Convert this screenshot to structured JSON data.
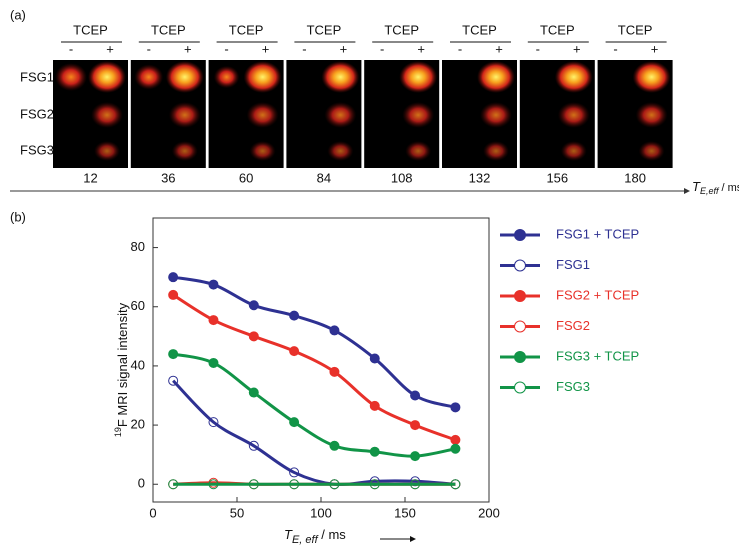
{
  "panel_labels": [
    "(a)",
    "(b)"
  ],
  "panel_a": {
    "column_header": "TCEP",
    "column_signs": [
      "-",
      "+"
    ],
    "rows": [
      "FSG1",
      "FSG2",
      "FSG3"
    ],
    "times": [
      "12",
      "36",
      "60",
      "84",
      "108",
      "132",
      "156",
      "180"
    ],
    "axis_label": {
      "symbol": "T",
      "subscript": "E,eff",
      "unit": " / ms"
    }
  },
  "chart_data": {
    "type": "line",
    "y_label": {
      "superscript": "19",
      "text": "F MRI signal intensity"
    },
    "x_label": {
      "symbol": "T",
      "subscript": "E, eff",
      "unit": " / ms"
    },
    "x": [
      12,
      36,
      60,
      84,
      108,
      132,
      156,
      180
    ],
    "xlim": [
      0,
      200
    ],
    "xticks": [
      0,
      50,
      100,
      150,
      200
    ],
    "ylim": [
      -6,
      90
    ],
    "yticks": [
      0,
      20,
      40,
      60,
      80
    ],
    "legend": "outside-right",
    "series": [
      {
        "name": "FSG1 + TCEP",
        "color": "#2e3192",
        "filled_markers": true,
        "values": [
          70,
          67.5,
          60.5,
          57,
          52,
          42.5,
          30,
          26
        ]
      },
      {
        "name": "FSG1",
        "color": "#2e3192",
        "filled_markers": false,
        "values": [
          35,
          21,
          13,
          4,
          0,
          1,
          1,
          0
        ]
      },
      {
        "name": "FSG2 + TCEP",
        "color": "#e8312a",
        "filled_markers": true,
        "values": [
          64,
          55.5,
          50,
          45,
          38,
          26.5,
          20,
          15
        ]
      },
      {
        "name": "FSG2",
        "color": "#e8312a",
        "filled_markers": false,
        "values": [
          0,
          0.5,
          0,
          0,
          0,
          0,
          0,
          0
        ]
      },
      {
        "name": "FSG3 + TCEP",
        "color": "#119447",
        "filled_markers": true,
        "values": [
          44,
          41,
          31,
          21,
          13,
          11,
          9.5,
          12
        ]
      },
      {
        "name": "FSG3",
        "color": "#119447",
        "filled_markers": false,
        "values": [
          0,
          0,
          0,
          0,
          0,
          0,
          0,
          0
        ]
      }
    ]
  }
}
